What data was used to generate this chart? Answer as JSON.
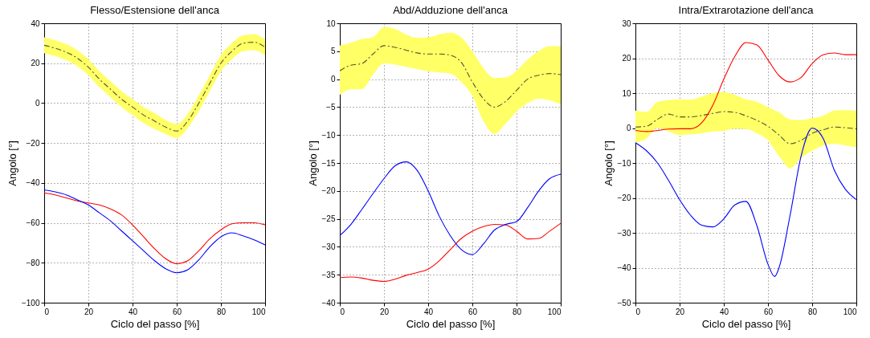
{
  "chart_data": [
    {
      "type": "line",
      "title": "Flesso/Estensione dell'anca",
      "xlabel": "Ciclo del passo [%]",
      "ylabel": "Angolo [°]",
      "x": [
        0,
        5,
        10,
        15,
        20,
        25,
        30,
        35,
        40,
        45,
        50,
        55,
        60,
        65,
        70,
        75,
        80,
        85,
        90,
        95,
        100
      ],
      "xlim": [
        0,
        100
      ],
      "xticks": [
        0,
        20,
        40,
        60,
        80,
        100
      ],
      "ylim": [
        -100,
        40
      ],
      "yticks": [
        -100,
        -80,
        -60,
        -40,
        -20,
        0,
        20,
        40
      ],
      "grid": true,
      "series": [
        {
          "color": "#555533",
          "line_style": "dashed",
          "values": [
            29,
            27.5,
            25.5,
            22.5,
            18,
            12,
            7,
            2,
            -2,
            -6,
            -9,
            -12,
            -14,
            -9,
            0,
            10,
            20,
            26,
            30,
            30.5,
            28
          ],
          "lower": [
            25,
            23.5,
            21.5,
            18.5,
            14,
            8,
            3,
            -2,
            -6,
            -10,
            -13,
            -15.5,
            -17.5,
            -12.5,
            -4,
            6,
            16,
            22,
            26,
            26.5,
            24
          ],
          "upper": [
            33,
            31.5,
            29.5,
            26.5,
            22,
            16,
            11,
            6,
            2,
            -2,
            -5,
            -8.5,
            -10.5,
            -5.5,
            4,
            14,
            24,
            30,
            34,
            34.5,
            32
          ]
        },
        {
          "color": "#ff0000",
          "values": [
            -45,
            -46,
            -47.5,
            -49,
            -50,
            -51,
            -53,
            -56,
            -61,
            -67,
            -73,
            -78,
            -80.5,
            -79,
            -74,
            -68,
            -63.5,
            -60.5,
            -60,
            -60,
            -61
          ]
        },
        {
          "color": "#0000ff",
          "values": [
            -43.5,
            -44.5,
            -46,
            -48.5,
            -51,
            -55,
            -59,
            -64,
            -69,
            -74,
            -79,
            -83,
            -85,
            -83.5,
            -78.5,
            -72,
            -67,
            -65,
            -66.5,
            -68.5,
            -71
          ]
        }
      ]
    },
    {
      "type": "line",
      "title": "Abd/Adduzione dell'anca",
      "xlabel": "Ciclo del passo [%]",
      "ylabel": "Angolo [°]",
      "x": [
        0,
        5,
        10,
        15,
        20,
        25,
        30,
        35,
        40,
        45,
        50,
        55,
        60,
        65,
        70,
        75,
        80,
        85,
        90,
        95,
        100
      ],
      "xlim": [
        0,
        100
      ],
      "xticks": [
        0,
        20,
        40,
        60,
        80,
        100
      ],
      "ylim": [
        -40,
        10
      ],
      "yticks": [
        -40,
        -35,
        -30,
        -25,
        -20,
        -15,
        -10,
        -5,
        0,
        5,
        10
      ],
      "grid": true,
      "series": [
        {
          "color": "#555533",
          "line_style": "dashed",
          "values": [
            1.5,
            2.5,
            2.8,
            4.5,
            6,
            5.7,
            5.2,
            4.7,
            4.5,
            4.5,
            4.3,
            3,
            -0.5,
            -3.5,
            -5,
            -4,
            -2,
            0,
            0.7,
            1,
            0.8
          ],
          "lower": [
            -2.8,
            -1.8,
            -1.8,
            0.8,
            2.8,
            2.6,
            2.2,
            1.8,
            1.4,
            1.2,
            1,
            -0.5,
            -3,
            -7.5,
            -9.8,
            -8,
            -5.8,
            -4.3,
            -3.5,
            -3.8,
            -4.5
          ],
          "upper": [
            6,
            6.5,
            7.2,
            7.5,
            9.3,
            9,
            8,
            7.4,
            7.5,
            8,
            8.3,
            7.5,
            5,
            2,
            0.2,
            0.3,
            1.5,
            3.5,
            5,
            5.9,
            5.9
          ]
        },
        {
          "color": "#ff0000",
          "values": [
            -35.5,
            -35.4,
            -35.6,
            -36,
            -36.2,
            -35.8,
            -35.1,
            -34.6,
            -34,
            -32.5,
            -30.5,
            -28.5,
            -27.2,
            -26.4,
            -26,
            -26.1,
            -27.2,
            -28.6,
            -28.5,
            -27.2,
            -25.8
          ]
        },
        {
          "color": "#0000ff",
          "values": [
            -28,
            -26,
            -23.3,
            -20.5,
            -17.8,
            -15.5,
            -14.8,
            -16.3,
            -20,
            -24.5,
            -28,
            -30.5,
            -31.4,
            -29.5,
            -27,
            -26,
            -25.5,
            -23,
            -20,
            -17.8,
            -17
          ]
        }
      ]
    },
    {
      "type": "line",
      "title": "Intra/Extrarotazione dell'anca",
      "xlabel": "Ciclo del passo [%]",
      "ylabel": "Angolo [°]",
      "x": [
        0,
        5,
        10,
        15,
        20,
        25,
        30,
        35,
        40,
        45,
        50,
        55,
        60,
        65,
        70,
        75,
        80,
        85,
        90,
        95,
        100
      ],
      "xlim": [
        0,
        100
      ],
      "xticks": [
        0,
        20,
        40,
        60,
        80,
        100
      ],
      "ylim": [
        -50,
        30
      ],
      "yticks": [
        -50,
        -40,
        -30,
        -20,
        -10,
        0,
        10,
        20,
        30
      ],
      "grid": true,
      "series": [
        {
          "color": "#555533",
          "line_style": "dashed",
          "values": [
            0.3,
            0.5,
            2.5,
            4,
            3.2,
            3.2,
            3.6,
            4.2,
            4.7,
            4.5,
            3.5,
            2.2,
            0.5,
            -2,
            -4.5,
            -3.5,
            -1.5,
            -0.5,
            0.3,
            0.1,
            -0.2
          ],
          "lower": [
            -4.2,
            -3,
            0,
            -1,
            -2,
            -1.8,
            -1.5,
            -1,
            -0.8,
            -0.2,
            -0.3,
            -1.5,
            -3.5,
            -8,
            -11.5,
            -8.5,
            -6.5,
            -5,
            -4.5,
            -5,
            -5.5
          ],
          "upper": [
            5,
            4.6,
            7.5,
            8,
            8.2,
            8.1,
            9,
            10,
            10.3,
            9.5,
            8.2,
            7.5,
            6,
            4.5,
            2.5,
            2.3,
            2.8,
            3.5,
            5,
            5.1,
            5
          ]
        },
        {
          "color": "#ff0000",
          "values": [
            -0.7,
            -1,
            -0.7,
            -0.3,
            -0.2,
            -0.2,
            1.5,
            6.5,
            14,
            20.5,
            24.5,
            23.8,
            19.5,
            15,
            13.2,
            14.5,
            18.5,
            21,
            21.5,
            21,
            21
          ]
        },
        {
          "color": "#0000ff",
          "x": [
            0,
            5,
            10,
            15,
            20,
            25,
            30,
            35,
            40,
            45,
            50,
            55,
            60,
            63,
            65,
            70,
            75,
            80,
            85,
            90,
            95,
            100
          ],
          "values": [
            -4.2,
            -6.5,
            -10,
            -15,
            -20.5,
            -25,
            -27.8,
            -28.3,
            -26,
            -22,
            -21,
            -28,
            -39,
            -42.5,
            -40,
            -25,
            -8,
            0,
            -3,
            -12,
            -17.5,
            -20.5
          ]
        }
      ]
    }
  ]
}
